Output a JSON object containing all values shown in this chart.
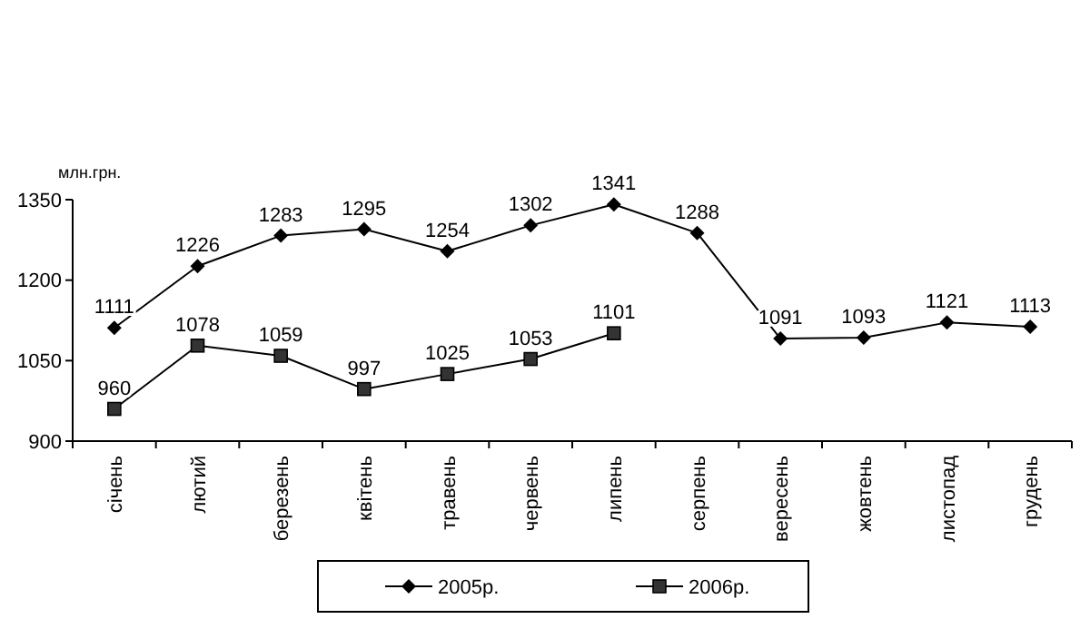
{
  "chart_data": {
    "type": "line",
    "ylabel": "млн.грн.",
    "categories": [
      "січень",
      "лютий",
      "березень",
      "квітень",
      "травень",
      "червень",
      "липень",
      "серпень",
      "вересень",
      "жовтень",
      "листопад",
      "грудень"
    ],
    "series": [
      {
        "name": "2005р.",
        "color": "#000000",
        "marker": "diamond",
        "values": [
          1111,
          1226,
          1283,
          1295,
          1254,
          1302,
          1341,
          1288,
          1091,
          1093,
          1121,
          1113
        ]
      },
      {
        "name": "2006р.",
        "color": "#333333",
        "marker": "square",
        "values": [
          960,
          1078,
          1059,
          997,
          1025,
          1053,
          1101,
          null,
          null,
          null,
          null,
          null
        ]
      }
    ],
    "ylim": [
      900,
      1350
    ],
    "yticks": [
      900,
      1050,
      1200,
      1350
    ],
    "data_labels": true,
    "legend": "bottom",
    "grid": false,
    "line_style": "solid"
  }
}
